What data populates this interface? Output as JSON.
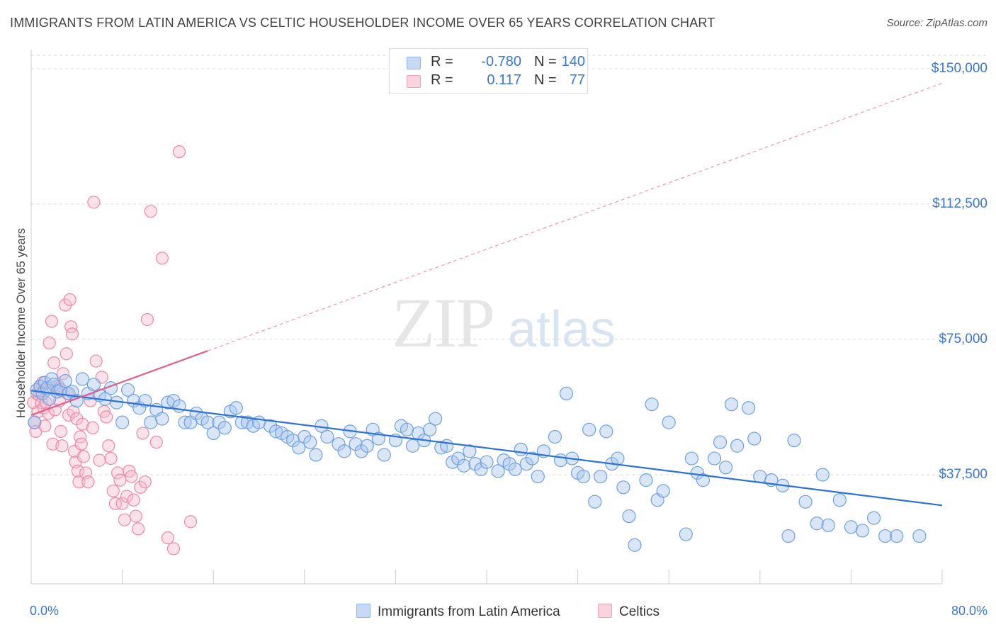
{
  "header": {
    "title": "IMMIGRANTS FROM LATIN AMERICA VS CELTIC HOUSEHOLDER INCOME OVER 65 YEARS CORRELATION CHART",
    "source": "Source: ZipAtlas.com"
  },
  "watermark": {
    "zip": "ZIP",
    "atlas": "atlas"
  },
  "legend": {
    "rows": [
      {
        "r_label": "R =",
        "r_value": "-0.780",
        "n_label": "N =",
        "n_value": "140",
        "color": "#a9c7ef"
      },
      {
        "r_label": "R =",
        "r_value": "0.117",
        "n_label": "N =",
        "n_value": "77",
        "color": "#f5b5c8"
      }
    ]
  },
  "colors": {
    "blue_fill": "#a9c7ef",
    "blue_stroke": "#6f9fdf",
    "blue_line": "#2f72d4",
    "pink_fill": "#f6bccd",
    "pink_stroke": "#e98aa8",
    "pink_line": "#e0608a",
    "grid": "#dddddd",
    "axis_text": "#3b77d0"
  },
  "chart_data": {
    "type": "scatter",
    "title": "IMMIGRANTS FROM LATIN AMERICA VS CELTIC HOUSEHOLDER INCOME OVER 65 YEARS CORRELATION CHART",
    "xlabel": "",
    "ylabel": "Householder Income Over 65 years",
    "x_tick_labels": [
      "0.0%",
      "80.0%"
    ],
    "y_tick_labels": [
      "$37,500",
      "$75,000",
      "$112,500",
      "$150,000"
    ],
    "y_ticks": [
      37500,
      75000,
      112500,
      150000
    ],
    "xlim": [
      0,
      80
    ],
    "ylim": [
      8000,
      157000
    ],
    "grid": true,
    "legend_position": "bottom-center",
    "series": [
      {
        "name": "Immigrants from Latin America",
        "trend": {
          "x": [
            0,
            80
          ],
          "y": [
            60800,
            29000
          ],
          "style": "solid"
        },
        "points": [
          [
            0.3,
            52000
          ],
          [
            0.5,
            61000
          ],
          [
            0.8,
            62000
          ],
          [
            1.0,
            60000
          ],
          [
            1.2,
            63000
          ],
          [
            1.4,
            61500
          ],
          [
            1.6,
            58500
          ],
          [
            1.8,
            64000
          ],
          [
            2.0,
            62500
          ],
          [
            2.3,
            60500
          ],
          [
            2.6,
            61000
          ],
          [
            3.0,
            63500
          ],
          [
            3.3,
            60000
          ],
          [
            3.6,
            60500
          ],
          [
            4.0,
            58000
          ],
          [
            4.5,
            64000
          ],
          [
            5.0,
            60000
          ],
          [
            5.5,
            62500
          ],
          [
            6.0,
            59500
          ],
          [
            6.5,
            58500
          ],
          [
            7.0,
            61500
          ],
          [
            7.5,
            57500
          ],
          [
            8.0,
            52000
          ],
          [
            8.5,
            61000
          ],
          [
            9.0,
            58000
          ],
          [
            9.5,
            56000
          ],
          [
            10.0,
            58000
          ],
          [
            10.5,
            52000
          ],
          [
            11.0,
            55500
          ],
          [
            11.5,
            53000
          ],
          [
            12.0,
            57500
          ],
          [
            12.5,
            58000
          ],
          [
            13.0,
            56500
          ],
          [
            13.5,
            52000
          ],
          [
            14.0,
            52000
          ],
          [
            14.5,
            54500
          ],
          [
            15.0,
            53000
          ],
          [
            15.5,
            52000
          ],
          [
            16.0,
            49000
          ],
          [
            16.5,
            52000
          ],
          [
            17.0,
            50500
          ],
          [
            17.5,
            55000
          ],
          [
            18.0,
            56000
          ],
          [
            18.5,
            52000
          ],
          [
            19.0,
            52000
          ],
          [
            19.5,
            51000
          ],
          [
            20.0,
            52000
          ],
          [
            21.0,
            51000
          ],
          [
            21.5,
            49500
          ],
          [
            22.0,
            49000
          ],
          [
            22.5,
            48000
          ],
          [
            23.0,
            47000
          ],
          [
            23.5,
            45000
          ],
          [
            24.0,
            48000
          ],
          [
            24.5,
            46500
          ],
          [
            25.0,
            43000
          ],
          [
            25.5,
            51000
          ],
          [
            26.0,
            48000
          ],
          [
            27.0,
            46000
          ],
          [
            27.5,
            44000
          ],
          [
            28.0,
            49500
          ],
          [
            28.5,
            46000
          ],
          [
            29.0,
            44000
          ],
          [
            29.5,
            45500
          ],
          [
            30.0,
            50000
          ],
          [
            30.5,
            47500
          ],
          [
            31.0,
            43000
          ],
          [
            32.0,
            47000
          ],
          [
            32.5,
            51000
          ],
          [
            33.0,
            50000
          ],
          [
            33.5,
            45500
          ],
          [
            34.0,
            49000
          ],
          [
            34.5,
            47000
          ],
          [
            35.0,
            50000
          ],
          [
            35.5,
            53000
          ],
          [
            36.0,
            45000
          ],
          [
            36.5,
            45500
          ],
          [
            37.0,
            41000
          ],
          [
            37.5,
            42000
          ],
          [
            38.0,
            40000
          ],
          [
            38.5,
            44000
          ],
          [
            39.0,
            40500
          ],
          [
            39.5,
            39000
          ],
          [
            40.0,
            41000
          ],
          [
            41.0,
            38500
          ],
          [
            41.5,
            41500
          ],
          [
            42.0,
            40500
          ],
          [
            42.5,
            39000
          ],
          [
            43.0,
            44500
          ],
          [
            43.5,
            40500
          ],
          [
            44.0,
            42000
          ],
          [
            44.5,
            37000
          ],
          [
            45.0,
            44000
          ],
          [
            46.0,
            48000
          ],
          [
            46.5,
            41500
          ],
          [
            47.0,
            60000
          ],
          [
            47.5,
            42000
          ],
          [
            48.0,
            38000
          ],
          [
            48.5,
            37000
          ],
          [
            49.0,
            50000
          ],
          [
            49.5,
            30000
          ],
          [
            50.0,
            37000
          ],
          [
            50.5,
            49500
          ],
          [
            51.0,
            40500
          ],
          [
            51.5,
            42000
          ],
          [
            52.0,
            34000
          ],
          [
            52.5,
            26000
          ],
          [
            53.0,
            18000
          ],
          [
            54.0,
            36000
          ],
          [
            54.5,
            57000
          ],
          [
            55.0,
            30500
          ],
          [
            55.5,
            33000
          ],
          [
            56.0,
            52000
          ],
          [
            57.5,
            21000
          ],
          [
            58.0,
            42000
          ],
          [
            58.5,
            38000
          ],
          [
            59.0,
            36000
          ],
          [
            60.0,
            42000
          ],
          [
            60.5,
            46500
          ],
          [
            61.0,
            39500
          ],
          [
            61.5,
            57000
          ],
          [
            62.0,
            45500
          ],
          [
            63.0,
            56000
          ],
          [
            63.5,
            47500
          ],
          [
            64.0,
            37000
          ],
          [
            65.0,
            36000
          ],
          [
            66.0,
            34500
          ],
          [
            66.5,
            20500
          ],
          [
            67.0,
            47000
          ],
          [
            68.0,
            30000
          ],
          [
            69.0,
            24000
          ],
          [
            69.5,
            37500
          ],
          [
            70.0,
            23500
          ],
          [
            71.0,
            30500
          ],
          [
            72.0,
            23000
          ],
          [
            73.0,
            22000
          ],
          [
            74.0,
            25500
          ],
          [
            75.0,
            20500
          ],
          [
            76.0,
            20500
          ],
          [
            78.0,
            20500
          ]
        ]
      },
      {
        "name": "Celtics",
        "trend": {
          "x": [
            0,
            80
          ],
          "y": [
            54000,
            146000
          ],
          "solid_until_x": 15.5
        },
        "points": [
          [
            0.2,
            57500
          ],
          [
            0.3,
            52000
          ],
          [
            0.4,
            49500
          ],
          [
            0.5,
            60000
          ],
          [
            0.6,
            55000
          ],
          [
            0.7,
            59500
          ],
          [
            0.8,
            62000
          ],
          [
            0.9,
            57500
          ],
          [
            1.0,
            63000
          ],
          [
            1.1,
            56000
          ],
          [
            1.2,
            51000
          ],
          [
            1.3,
            57500
          ],
          [
            1.4,
            61000
          ],
          [
            1.5,
            54500
          ],
          [
            1.6,
            74000
          ],
          [
            1.8,
            80000
          ],
          [
            1.9,
            46000
          ],
          [
            2.0,
            68500
          ],
          [
            2.1,
            55500
          ],
          [
            2.2,
            62000
          ],
          [
            2.4,
            62000
          ],
          [
            2.5,
            58000
          ],
          [
            2.6,
            49500
          ],
          [
            2.7,
            45500
          ],
          [
            2.8,
            65500
          ],
          [
            3.0,
            84500
          ],
          [
            3.1,
            71000
          ],
          [
            3.2,
            60000
          ],
          [
            3.3,
            54000
          ],
          [
            3.4,
            86000
          ],
          [
            3.5,
            78500
          ],
          [
            3.6,
            76500
          ],
          [
            3.7,
            55000
          ],
          [
            3.8,
            44000
          ],
          [
            3.9,
            41000
          ],
          [
            4.0,
            53000
          ],
          [
            4.1,
            38500
          ],
          [
            4.2,
            35500
          ],
          [
            4.3,
            48000
          ],
          [
            4.4,
            46000
          ],
          [
            4.5,
            51500
          ],
          [
            4.6,
            42500
          ],
          [
            4.8,
            38000
          ],
          [
            5.0,
            35500
          ],
          [
            5.2,
            58000
          ],
          [
            5.4,
            50500
          ],
          [
            5.5,
            113000
          ],
          [
            5.7,
            69000
          ],
          [
            6.0,
            41500
          ],
          [
            6.2,
            64500
          ],
          [
            6.4,
            55000
          ],
          [
            6.6,
            53500
          ],
          [
            6.8,
            45500
          ],
          [
            7.0,
            42000
          ],
          [
            7.2,
            33000
          ],
          [
            7.4,
            29500
          ],
          [
            7.6,
            38000
          ],
          [
            7.8,
            36000
          ],
          [
            8.0,
            29500
          ],
          [
            8.2,
            25000
          ],
          [
            8.4,
            31500
          ],
          [
            8.6,
            38500
          ],
          [
            8.8,
            37000
          ],
          [
            9.0,
            30500
          ],
          [
            9.2,
            26000
          ],
          [
            9.4,
            22500
          ],
          [
            9.6,
            34000
          ],
          [
            9.8,
            49000
          ],
          [
            10.0,
            35500
          ],
          [
            10.2,
            80500
          ],
          [
            10.5,
            110500
          ],
          [
            11.0,
            46500
          ],
          [
            11.5,
            97500
          ],
          [
            12.0,
            20000
          ],
          [
            12.5,
            17000
          ],
          [
            13.0,
            127000
          ],
          [
            14.0,
            24500
          ]
        ]
      }
    ]
  },
  "bottom_legend": [
    "Immigrants from Latin America",
    "Celtics"
  ]
}
